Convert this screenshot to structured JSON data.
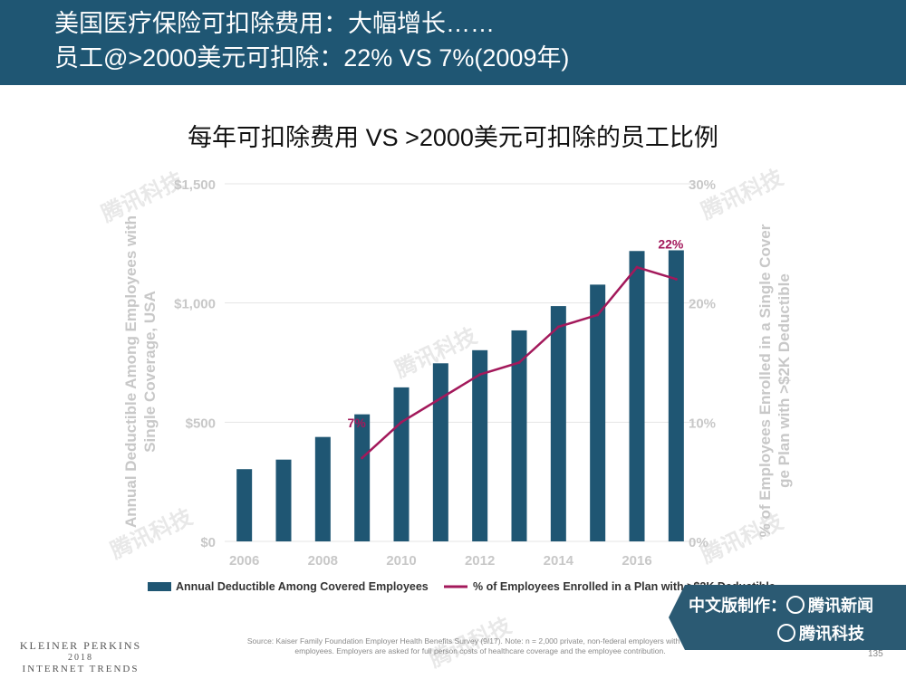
{
  "header": {
    "line1": "美国医疗保险可扣除费用：大幅增长……",
    "line2": "员工@>2000美元可扣除：22% VS 7%(2009年)"
  },
  "chart_title": "每年可扣除费用 VS  >2000美元可扣除的员工比例",
  "chart_data": {
    "type": "bar",
    "title": "每年可扣除费用 VS  >2000美元可扣除的员工比例",
    "categories": [
      "2006",
      "2007",
      "2008",
      "2009",
      "2010",
      "2011",
      "2012",
      "2013",
      "2014",
      "2015",
      "2016",
      "2017"
    ],
    "x_tick_labels": [
      "2006",
      "2008",
      "2010",
      "2012",
      "2014",
      "2016"
    ],
    "series": [
      {
        "name": "Annual Deductible Among Covered Employees",
        "type": "bar",
        "axis": "left",
        "color": "#1f5673",
        "values": [
          303,
          343,
          438,
          533,
          646,
          747,
          802,
          885,
          987,
          1077,
          1218,
          1221
        ]
      },
      {
        "name": "% of Employees Enrolled in a Plan with >$2K Deductible",
        "type": "line",
        "axis": "right",
        "color": "#a3195b",
        "x": [
          "2009",
          "2010",
          "2011",
          "2012",
          "2013",
          "2014",
          "2015",
          "2016",
          "2017"
        ],
        "values": [
          7,
          10,
          12,
          14,
          15,
          18,
          19,
          23,
          22
        ]
      }
    ],
    "ylabel_left": "Annual Deductible Among Employees with Single Coverage, USA",
    "ylabel_right": "% of Employees Enrolled in a Single Coverage Plan with >$2K Deductible",
    "ylim_left": [
      0,
      1500
    ],
    "ylim_right": [
      0,
      30
    ],
    "yticks_left": [
      "$0",
      "$500",
      "$1,000",
      "$1,500"
    ],
    "yticks_right": [
      "0%",
      "10%",
      "20%",
      "30%"
    ],
    "annotations": [
      {
        "text": "7%",
        "x": "2009",
        "value": 7
      },
      {
        "text": "22%",
        "x": "2017",
        "value": 22
      }
    ],
    "grid": true,
    "legend_position": "bottom"
  },
  "badge": {
    "line1": "中文版制作：",
    "brand1": "腾讯新闻",
    "brand2": "腾讯科技"
  },
  "watermark_text": "腾讯科技",
  "footer": {
    "logo_line1": "KLEINER PERKINS",
    "logo_line2": "2018",
    "logo_line3": "INTERNET TRENDS",
    "source": "Source: Kaiser Family Foundation Employer Health Benefits Survey (9/17).  Note: n = 2,000 private, non-federal employers with at least 3 employees. Employers are asked for full person costs of healthcare coverage and the employee contribution.",
    "page_number": "135"
  },
  "colors": {
    "header_bg": "#1f5673",
    "bar": "#1f5673",
    "line": "#a3195b",
    "axis_text": "#c8c8c8"
  }
}
